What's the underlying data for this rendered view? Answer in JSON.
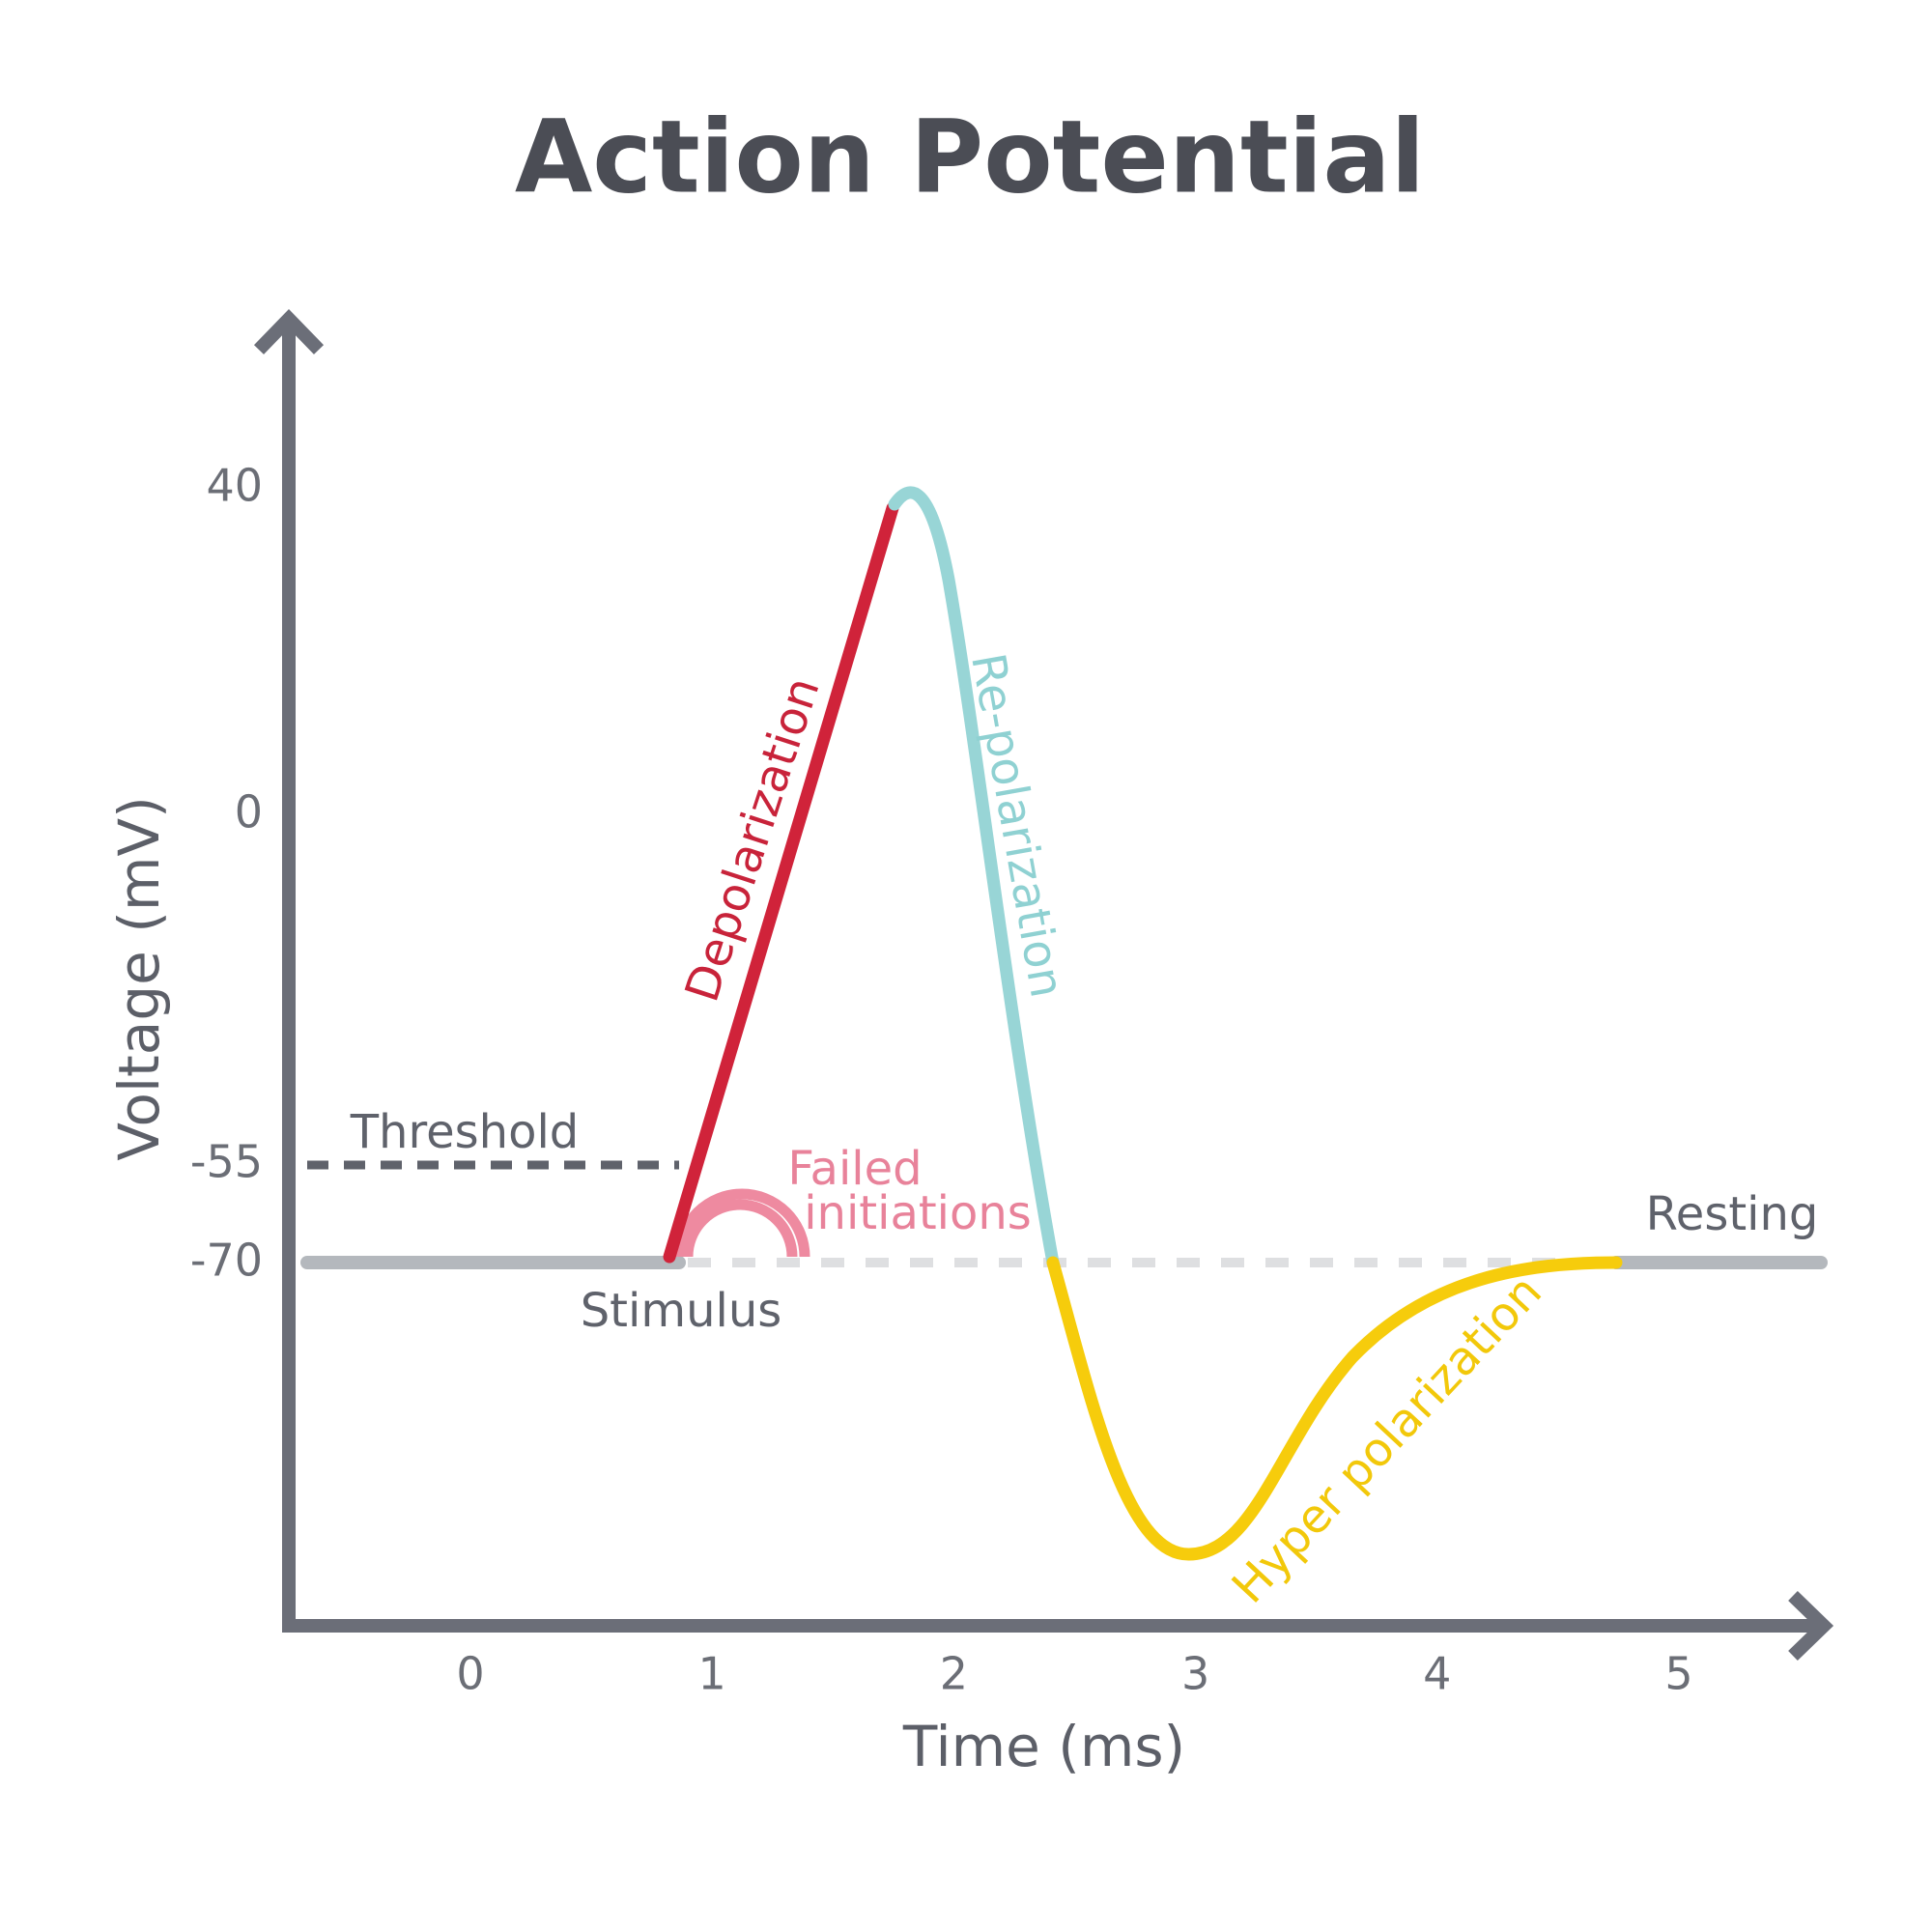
{
  "title": "Action Potential",
  "y_axis": {
    "label": "Voltage (mV)",
    "ticks": [
      40,
      0,
      -55,
      -70
    ]
  },
  "x_axis": {
    "label": "Time (ms)",
    "ticks": [
      0,
      1,
      2,
      3,
      4,
      5
    ]
  },
  "annotations": {
    "threshold": "Threshold",
    "stimulus": "Stimulus",
    "failed": [
      "Failed",
      "initiations"
    ],
    "resting": "Resting",
    "depolarization": "Depolarization",
    "repolarization": "Re-polarization",
    "hyperpolarization": "Hyper polarization"
  }
}
